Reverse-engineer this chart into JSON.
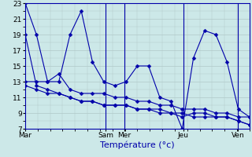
{
  "background_color": "#cce8e8",
  "grid_color": "#b0c8c8",
  "line_color": "#0000aa",
  "xlabel": "Température (°c)",
  "xlabel_fontsize": 8,
  "ylabel_fontsize": 6.5,
  "tick_fontsize": 6.5,
  "ylim": [
    7,
    23
  ],
  "yticks": [
    7,
    9,
    11,
    13,
    15,
    17,
    19,
    21,
    23
  ],
  "x_day_labels": [
    "Mar",
    "Sam",
    "Mer",
    "Jeu",
    "Ven"
  ],
  "x_day_positions": [
    0,
    34,
    42,
    67,
    90
  ],
  "x_lim": [
    0,
    95
  ],
  "series": [
    [
      23,
      19,
      13,
      13,
      19,
      22,
      15.5,
      13,
      12.5,
      13,
      15,
      15,
      11,
      10.5,
      7,
      16,
      19.5,
      19,
      15.5,
      9.5,
      8.5
    ],
    [
      13,
      13,
      13,
      14,
      12,
      11.5,
      11.5,
      11.5,
      11,
      11,
      10.5,
      10.5,
      10,
      10,
      9.5,
      9.5,
      9.5,
      9,
      9,
      8.5,
      8.5
    ],
    [
      19,
      12.5,
      12,
      11.5,
      11,
      10.5,
      10.5,
      10,
      10,
      10,
      9.5,
      9.5,
      9,
      9,
      8.5,
      9,
      9,
      8.5,
      8.5,
      8,
      7.5
    ],
    [
      12.5,
      12,
      11.5,
      11.5,
      11,
      10.5,
      10.5,
      10,
      10,
      10,
      9.5,
      9.5,
      9.5,
      9,
      9,
      8.5,
      8.5,
      8.5,
      8.5,
      8,
      7.5
    ]
  ],
  "n_points": 21,
  "vline_positions": [
    34,
    42,
    67,
    90
  ],
  "marker_size": 2.5
}
